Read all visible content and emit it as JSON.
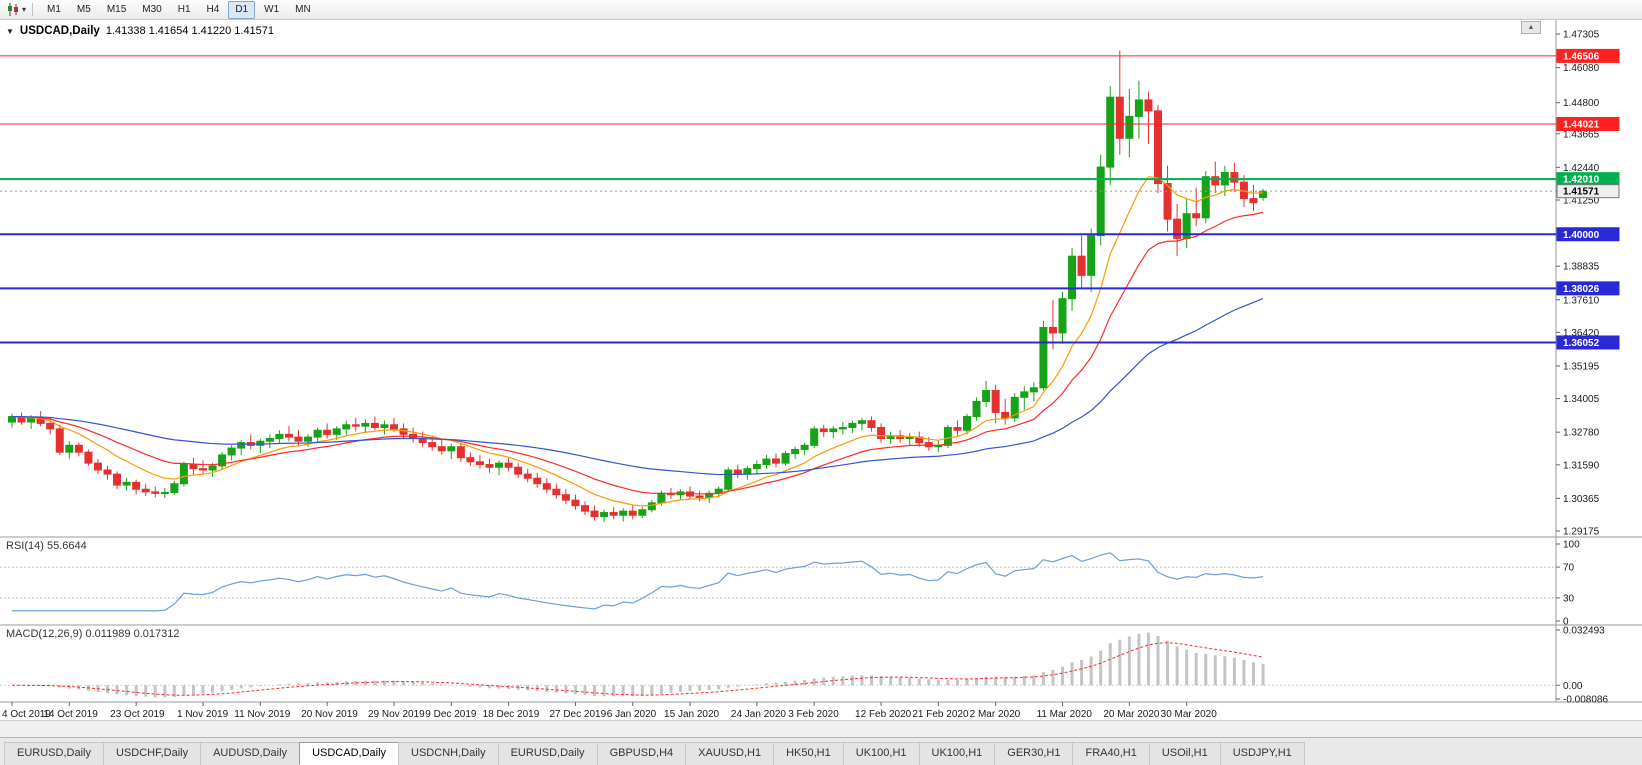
{
  "icons": {
    "collapse": "▼",
    "dropdown": "▾",
    "scroll_up": "▲"
  },
  "toolbar": {
    "timeframes": [
      {
        "label": "M1"
      },
      {
        "label": "M5"
      },
      {
        "label": "M15"
      },
      {
        "label": "M30"
      },
      {
        "label": "H1"
      },
      {
        "label": "H4"
      },
      {
        "label": "D1",
        "active": true
      },
      {
        "label": "W1"
      },
      {
        "label": "MN"
      }
    ]
  },
  "chart_header": {
    "symbol": "USDCAD,Daily",
    "ohlc": "1.41338 1.41654 1.41220 1.41571"
  },
  "indicators": {
    "rsi_label": "RSI(14) 55.6644",
    "macd_label": "MACD(12,26,9) 0.011989 0.017312"
  },
  "tabbar": {
    "active_index": 3,
    "items": [
      {
        "label": "EURUSD,Daily"
      },
      {
        "label": "USDCHF,Daily"
      },
      {
        "label": "AUDUSD,Daily"
      },
      {
        "label": "USDCAD,Daily"
      },
      {
        "label": "USDCNH,Daily"
      },
      {
        "label": "EURUSD,Daily"
      },
      {
        "label": "GBPUSD,H4"
      },
      {
        "label": "XAUUSD,H1"
      },
      {
        "label": "HK50,H1"
      },
      {
        "label": "UK100,H1"
      },
      {
        "label": "UK100,H1"
      },
      {
        "label": "GER30,H1"
      },
      {
        "label": "FRA40,H1"
      },
      {
        "label": "USOil,H1"
      },
      {
        "label": "USDJPY,H1"
      }
    ]
  },
  "chart_data": {
    "type": "candlestick",
    "symbol": "USDCAD",
    "timeframe": "Daily",
    "colors": {
      "bull": "#17a317",
      "bear": "#e53030"
    },
    "price_axis": {
      "min": 1.29175,
      "max": 1.47305,
      "ticks": [
        1.47305,
        1.4608,
        1.448,
        1.43665,
        1.4244,
        1.4125,
        1.38835,
        1.3761,
        1.3642,
        1.35195,
        1.34005,
        1.3278,
        1.3159,
        1.30365,
        1.29175
      ]
    },
    "hlines": [
      {
        "value": 1.46506,
        "label": "1.46506",
        "color": "#ff2020",
        "width": 1
      },
      {
        "value": 1.44021,
        "label": "1.44021",
        "color": "#ff2020",
        "width": 1
      },
      {
        "value": 1.4201,
        "label": "1.42010",
        "color": "#00b050",
        "width": 2
      },
      {
        "value": 1.4,
        "label": "1.40000",
        "color": "#2929d6",
        "width": 2
      },
      {
        "value": 1.38026,
        "label": "1.38026",
        "color": "#2929d6",
        "width": 2
      },
      {
        "value": 1.36052,
        "label": "1.36052",
        "color": "#2929d6",
        "width": 2
      }
    ],
    "current_price": {
      "value": 1.41571,
      "label": "1.41571"
    },
    "moving_averages": [
      {
        "period": 10,
        "color": "#ff9900"
      },
      {
        "period": 20,
        "color": "#ff2a2a"
      },
      {
        "period": 55,
        "color": "#3355cc"
      }
    ],
    "rsi": {
      "period": 14,
      "levels": [
        100,
        70,
        30,
        0
      ],
      "line_color": "#6c9fd4"
    },
    "macd": {
      "fast": 12,
      "slow": 26,
      "signal": 9,
      "hist_color": "#c4c4c4",
      "signal_color": "#ff2a2a",
      "axis": {
        "min": -0.008086,
        "max": 0.032493,
        "ticks": [
          {
            "value": 0.032493,
            "label": "0.032493"
          },
          {
            "value": 0,
            "label": "0.00"
          },
          {
            "value": -0.008086,
            "label": "-0.008086"
          }
        ]
      }
    },
    "x_labels": [
      {
        "index": 0,
        "text": "4 Oct 2019"
      },
      {
        "index": 6,
        "text": "14 Oct 2019"
      },
      {
        "index": 13,
        "text": "23 Oct 2019"
      },
      {
        "index": 20,
        "text": "1 Nov 2019"
      },
      {
        "index": 26,
        "text": "11 Nov 2019"
      },
      {
        "index": 33,
        "text": "20 Nov 2019"
      },
      {
        "index": 40,
        "text": "29 Nov 2019"
      },
      {
        "index": 46,
        "text": "9 Dec 2019"
      },
      {
        "index": 52,
        "text": "18 Dec 2019"
      },
      {
        "index": 59,
        "text": "27 Dec 2019"
      },
      {
        "index": 65,
        "text": "6 Jan 2020"
      },
      {
        "index": 71,
        "text": "15 Jan 2020"
      },
      {
        "index": 78,
        "text": "24 Jan 2020"
      },
      {
        "index": 84,
        "text": "3 Feb 2020"
      },
      {
        "index": 91,
        "text": "12 Feb 2020"
      },
      {
        "index": 97,
        "text": "21 Feb 2020"
      },
      {
        "index": 103,
        "text": "2 Mar 2020"
      },
      {
        "index": 110,
        "text": "11 Mar 2020"
      },
      {
        "index": 117,
        "text": "20 Mar 2020"
      },
      {
        "index": 123,
        "text": "30 Mar 2020"
      }
    ],
    "candles": [
      [
        1.3315,
        1.3345,
        1.3295,
        1.3335
      ],
      [
        1.3335,
        1.335,
        1.3305,
        1.3315
      ],
      [
        1.3315,
        1.334,
        1.329,
        1.333
      ],
      [
        1.333,
        1.3355,
        1.33,
        1.331
      ],
      [
        1.331,
        1.333,
        1.327,
        1.329
      ],
      [
        1.329,
        1.3305,
        1.3195,
        1.3205
      ],
      [
        1.3205,
        1.3245,
        1.318,
        1.323
      ],
      [
        1.323,
        1.324,
        1.319,
        1.3205
      ],
      [
        1.3205,
        1.3215,
        1.3155,
        1.3165
      ],
      [
        1.3165,
        1.318,
        1.3125,
        1.314
      ],
      [
        1.314,
        1.3155,
        1.3105,
        1.3125
      ],
      [
        1.3125,
        1.3135,
        1.307,
        1.3085
      ],
      [
        1.3085,
        1.311,
        1.3065,
        1.3095
      ],
      [
        1.3095,
        1.3105,
        1.305,
        1.307
      ],
      [
        1.307,
        1.309,
        1.3045,
        1.306
      ],
      [
        1.306,
        1.308,
        1.304,
        1.3055
      ],
      [
        1.3055,
        1.3075,
        1.3038,
        1.3058
      ],
      [
        1.3058,
        1.31,
        1.305,
        1.309
      ],
      [
        1.309,
        1.317,
        1.308,
        1.316
      ],
      [
        1.316,
        1.3185,
        1.312,
        1.3145
      ],
      [
        1.3145,
        1.3175,
        1.3125,
        1.314
      ],
      [
        1.314,
        1.3165,
        1.3115,
        1.3155
      ],
      [
        1.3155,
        1.3205,
        1.314,
        1.3195
      ],
      [
        1.3195,
        1.323,
        1.3175,
        1.322
      ],
      [
        1.322,
        1.325,
        1.3195,
        1.324
      ],
      [
        1.324,
        1.327,
        1.3215,
        1.323
      ],
      [
        1.323,
        1.3255,
        1.32,
        1.3245
      ],
      [
        1.3245,
        1.327,
        1.322,
        1.3255
      ],
      [
        1.3255,
        1.3285,
        1.3235,
        1.327
      ],
      [
        1.327,
        1.33,
        1.3245,
        1.326
      ],
      [
        1.326,
        1.3285,
        1.323,
        1.3245
      ],
      [
        1.3245,
        1.327,
        1.3225,
        1.326
      ],
      [
        1.326,
        1.3295,
        1.324,
        1.3285
      ],
      [
        1.3285,
        1.331,
        1.3255,
        1.327
      ],
      [
        1.327,
        1.33,
        1.325,
        1.329
      ],
      [
        1.329,
        1.332,
        1.3265,
        1.3305
      ],
      [
        1.3305,
        1.333,
        1.328,
        1.33
      ],
      [
        1.33,
        1.3325,
        1.3275,
        1.331
      ],
      [
        1.331,
        1.3335,
        1.3285,
        1.3295
      ],
      [
        1.3295,
        1.332,
        1.327,
        1.3305
      ],
      [
        1.3305,
        1.333,
        1.328,
        1.329
      ],
      [
        1.329,
        1.331,
        1.3255,
        1.327
      ],
      [
        1.327,
        1.3295,
        1.324,
        1.3255
      ],
      [
        1.3255,
        1.328,
        1.3225,
        1.324
      ],
      [
        1.324,
        1.3265,
        1.321,
        1.3225
      ],
      [
        1.3225,
        1.325,
        1.3195,
        1.321
      ],
      [
        1.321,
        1.3235,
        1.318,
        1.3225
      ],
      [
        1.3225,
        1.324,
        1.317,
        1.3185
      ],
      [
        1.3185,
        1.3205,
        1.3155,
        1.317
      ],
      [
        1.317,
        1.3195,
        1.3145,
        1.316
      ],
      [
        1.316,
        1.318,
        1.313,
        1.315
      ],
      [
        1.315,
        1.3175,
        1.312,
        1.3165
      ],
      [
        1.3165,
        1.3185,
        1.3135,
        1.315
      ],
      [
        1.315,
        1.3165,
        1.311,
        1.3125
      ],
      [
        1.3125,
        1.3145,
        1.3095,
        1.311
      ],
      [
        1.311,
        1.313,
        1.3075,
        1.309
      ],
      [
        1.309,
        1.311,
        1.3055,
        1.307
      ],
      [
        1.307,
        1.309,
        1.3035,
        1.305
      ],
      [
        1.305,
        1.307,
        1.3015,
        1.303
      ],
      [
        1.303,
        1.305,
        1.2995,
        1.301
      ],
      [
        1.301,
        1.3025,
        1.2975,
        1.299
      ],
      [
        1.299,
        1.301,
        1.2955,
        1.297
      ],
      [
        1.297,
        1.2995,
        1.295,
        1.2985
      ],
      [
        1.2985,
        1.3005,
        1.296,
        1.2975
      ],
      [
        1.2975,
        1.3,
        1.2952,
        1.299
      ],
      [
        1.299,
        1.301,
        1.296,
        1.2975
      ],
      [
        1.2975,
        1.3005,
        1.2965,
        1.2995
      ],
      [
        1.2995,
        1.303,
        1.2985,
        1.302
      ],
      [
        1.302,
        1.3065,
        1.301,
        1.3055
      ],
      [
        1.3055,
        1.3075,
        1.3035,
        1.305
      ],
      [
        1.305,
        1.307,
        1.303,
        1.306
      ],
      [
        1.306,
        1.308,
        1.3035,
        1.3045
      ],
      [
        1.3045,
        1.3065,
        1.3025,
        1.304
      ],
      [
        1.304,
        1.3065,
        1.302,
        1.3055
      ],
      [
        1.3055,
        1.308,
        1.304,
        1.307
      ],
      [
        1.307,
        1.315,
        1.306,
        1.314
      ],
      [
        1.314,
        1.316,
        1.311,
        1.3125
      ],
      [
        1.3125,
        1.3155,
        1.3105,
        1.3145
      ],
      [
        1.3145,
        1.3175,
        1.3125,
        1.316
      ],
      [
        1.316,
        1.3195,
        1.3145,
        1.318
      ],
      [
        1.318,
        1.32,
        1.315,
        1.3165
      ],
      [
        1.3165,
        1.321,
        1.3155,
        1.32
      ],
      [
        1.32,
        1.3225,
        1.318,
        1.3215
      ],
      [
        1.3215,
        1.324,
        1.3195,
        1.323
      ],
      [
        1.323,
        1.33,
        1.322,
        1.329
      ],
      [
        1.329,
        1.3305,
        1.326,
        1.328
      ],
      [
        1.328,
        1.33,
        1.3255,
        1.329
      ],
      [
        1.329,
        1.3315,
        1.327,
        1.3295
      ],
      [
        1.3295,
        1.332,
        1.3275,
        1.331
      ],
      [
        1.331,
        1.333,
        1.3285,
        1.332
      ],
      [
        1.332,
        1.3335,
        1.328,
        1.3295
      ],
      [
        1.3295,
        1.331,
        1.324,
        1.3255
      ],
      [
        1.3255,
        1.328,
        1.3235,
        1.3265
      ],
      [
        1.3265,
        1.3285,
        1.324,
        1.3255
      ],
      [
        1.3255,
        1.3275,
        1.323,
        1.326
      ],
      [
        1.326,
        1.328,
        1.3225,
        1.324
      ],
      [
        1.324,
        1.326,
        1.321,
        1.3225
      ],
      [
        1.3225,
        1.325,
        1.3205,
        1.323
      ],
      [
        1.323,
        1.3305,
        1.322,
        1.3295
      ],
      [
        1.3295,
        1.332,
        1.3265,
        1.3285
      ],
      [
        1.3285,
        1.3345,
        1.327,
        1.3335
      ],
      [
        1.3335,
        1.3405,
        1.332,
        1.339
      ],
      [
        1.339,
        1.3465,
        1.337,
        1.343
      ],
      [
        1.343,
        1.345,
        1.331,
        1.335
      ],
      [
        1.335,
        1.34,
        1.3305,
        1.333
      ],
      [
        1.333,
        1.342,
        1.3315,
        1.3405
      ],
      [
        1.3405,
        1.3445,
        1.336,
        1.3425
      ],
      [
        1.3425,
        1.346,
        1.339,
        1.344
      ],
      [
        1.344,
        1.3685,
        1.343,
        1.366
      ],
      [
        1.366,
        1.376,
        1.358,
        1.364
      ],
      [
        1.364,
        1.379,
        1.36,
        1.3765
      ],
      [
        1.3765,
        1.395,
        1.372,
        1.392
      ],
      [
        1.392,
        1.3995,
        1.38,
        1.385
      ],
      [
        1.385,
        1.402,
        1.379,
        1.3995
      ],
      [
        1.3995,
        1.429,
        1.396,
        1.4245
      ],
      [
        1.4245,
        1.454,
        1.418,
        1.45
      ],
      [
        1.45,
        1.467,
        1.429,
        1.435
      ],
      [
        1.435,
        1.453,
        1.428,
        1.443
      ],
      [
        1.443,
        1.456,
        1.435,
        1.449
      ],
      [
        1.449,
        1.452,
        1.433,
        1.445
      ],
      [
        1.445,
        1.447,
        1.415,
        1.4185
      ],
      [
        1.4185,
        1.425,
        1.401,
        1.4055
      ],
      [
        1.4055,
        1.411,
        1.392,
        1.3985
      ],
      [
        1.3985,
        1.413,
        1.395,
        1.4075
      ],
      [
        1.4075,
        1.417,
        1.403,
        1.406
      ],
      [
        1.406,
        1.423,
        1.404,
        1.421
      ],
      [
        1.421,
        1.4265,
        1.415,
        1.418
      ],
      [
        1.418,
        1.425,
        1.414,
        1.4225
      ],
      [
        1.4225,
        1.426,
        1.4155,
        1.419
      ],
      [
        1.419,
        1.4215,
        1.41,
        1.413
      ],
      [
        1.413,
        1.418,
        1.4085,
        1.4115
      ],
      [
        1.41338,
        1.41654,
        1.4122,
        1.41571
      ]
    ]
  }
}
